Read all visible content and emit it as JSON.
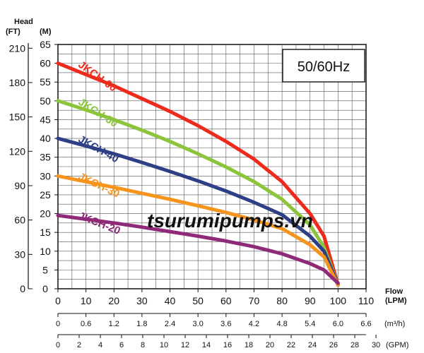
{
  "chart_data": {
    "type": "line",
    "head_title": "Head",
    "y_unit_ft": "(FT)",
    "y_unit_m": "(M)",
    "x_title": "Flow",
    "x_unit_lpm": "(LPM)",
    "x_unit_m3h": "(m³/h)",
    "x_unit_gpm": "(GPM)",
    "frequency_label": "50/60Hz",
    "watermark": "tsurumipumps.vn",
    "xlim": [
      0,
      110
    ],
    "ylim": [
      0,
      65
    ],
    "grid": true,
    "y_ticks_m": [
      "0",
      "5",
      "10",
      "15",
      "20",
      "25",
      "30",
      "35",
      "40",
      "45",
      "50",
      "55",
      "60",
      "65"
    ],
    "y_ticks_ft": [
      "0",
      "30",
      "60",
      "90",
      "120",
      "150",
      "180",
      "210"
    ],
    "x_ticks_lpm": [
      "0",
      "10",
      "20",
      "30",
      "40",
      "50",
      "60",
      "70",
      "80",
      "90",
      "100",
      "110"
    ],
    "x_ticks_m3h": [
      "0",
      "0.6",
      "1.2",
      "1.8",
      "2.4",
      "3.0",
      "3.6",
      "4.2",
      "4.8",
      "5.4",
      "6.0",
      "6.6"
    ],
    "x_ticks_gpm": [
      "0",
      "2",
      "4",
      "6",
      "8",
      "10",
      "12",
      "14",
      "16",
      "18",
      "20",
      "22",
      "24",
      "26",
      "28",
      "30"
    ],
    "series": [
      {
        "name": "JKCH-60",
        "color": "#ee2a1c",
        "x": [
          0,
          10,
          20,
          30,
          40,
          50,
          60,
          70,
          80,
          90,
          95,
          100
        ],
        "y": [
          60,
          57,
          54,
          50.6,
          47.2,
          43.4,
          39.2,
          34.5,
          28.5,
          20,
          14,
          1
        ]
      },
      {
        "name": "JKCH-50",
        "color": "#8cc43c",
        "x": [
          0,
          10,
          20,
          30,
          40,
          50,
          60,
          70,
          80,
          90,
          95,
          100
        ],
        "y": [
          50,
          47.6,
          45,
          42.2,
          39.2,
          35.9,
          32.4,
          28.5,
          23.8,
          17,
          11,
          1
        ]
      },
      {
        "name": "JKCH-40",
        "color": "#2e3f86",
        "x": [
          0,
          10,
          20,
          30,
          40,
          50,
          60,
          70,
          80,
          90,
          95,
          100
        ],
        "y": [
          40,
          38,
          35.9,
          33.6,
          31.2,
          28.7,
          26,
          23,
          19.7,
          14,
          10,
          1
        ]
      },
      {
        "name": "JKCH-30",
        "color": "#f7941d",
        "x": [
          0,
          10,
          20,
          30,
          40,
          50,
          60,
          70,
          80,
          90,
          95,
          100
        ],
        "y": [
          30,
          28.5,
          27,
          25.4,
          23.8,
          22.1,
          20.3,
          18.3,
          16,
          11.7,
          8.5,
          1
        ]
      },
      {
        "name": "JKCH-20",
        "color": "#8e2a78",
        "x": [
          0,
          10,
          20,
          30,
          40,
          50,
          60,
          70,
          80,
          90,
          95,
          100
        ],
        "y": [
          19.5,
          18.5,
          17.5,
          16.4,
          15.2,
          14,
          12.7,
          11.2,
          9.3,
          6.7,
          5,
          1.5
        ]
      }
    ]
  }
}
